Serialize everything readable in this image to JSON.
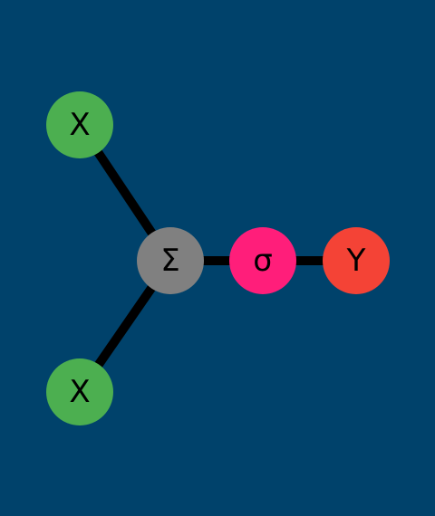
{
  "background_color": "#00426B",
  "edge_color": "#000000",
  "nodes": [
    {
      "id": "x1",
      "label": "X",
      "color": "#4CAF50"
    },
    {
      "id": "x2",
      "label": "X",
      "color": "#4CAF50"
    },
    {
      "id": "sum",
      "label": "Σ",
      "color": "#808080"
    },
    {
      "id": "sigma",
      "label": "σ",
      "color": "#FF1E7A"
    },
    {
      "id": "y",
      "label": "Y",
      "color": "#F44336"
    }
  ],
  "edges": [
    {
      "from": "x1",
      "to": "sum"
    },
    {
      "from": "x2",
      "to": "sum"
    },
    {
      "from": "sum",
      "to": "sigma"
    },
    {
      "from": "sigma",
      "to": "y"
    }
  ]
}
